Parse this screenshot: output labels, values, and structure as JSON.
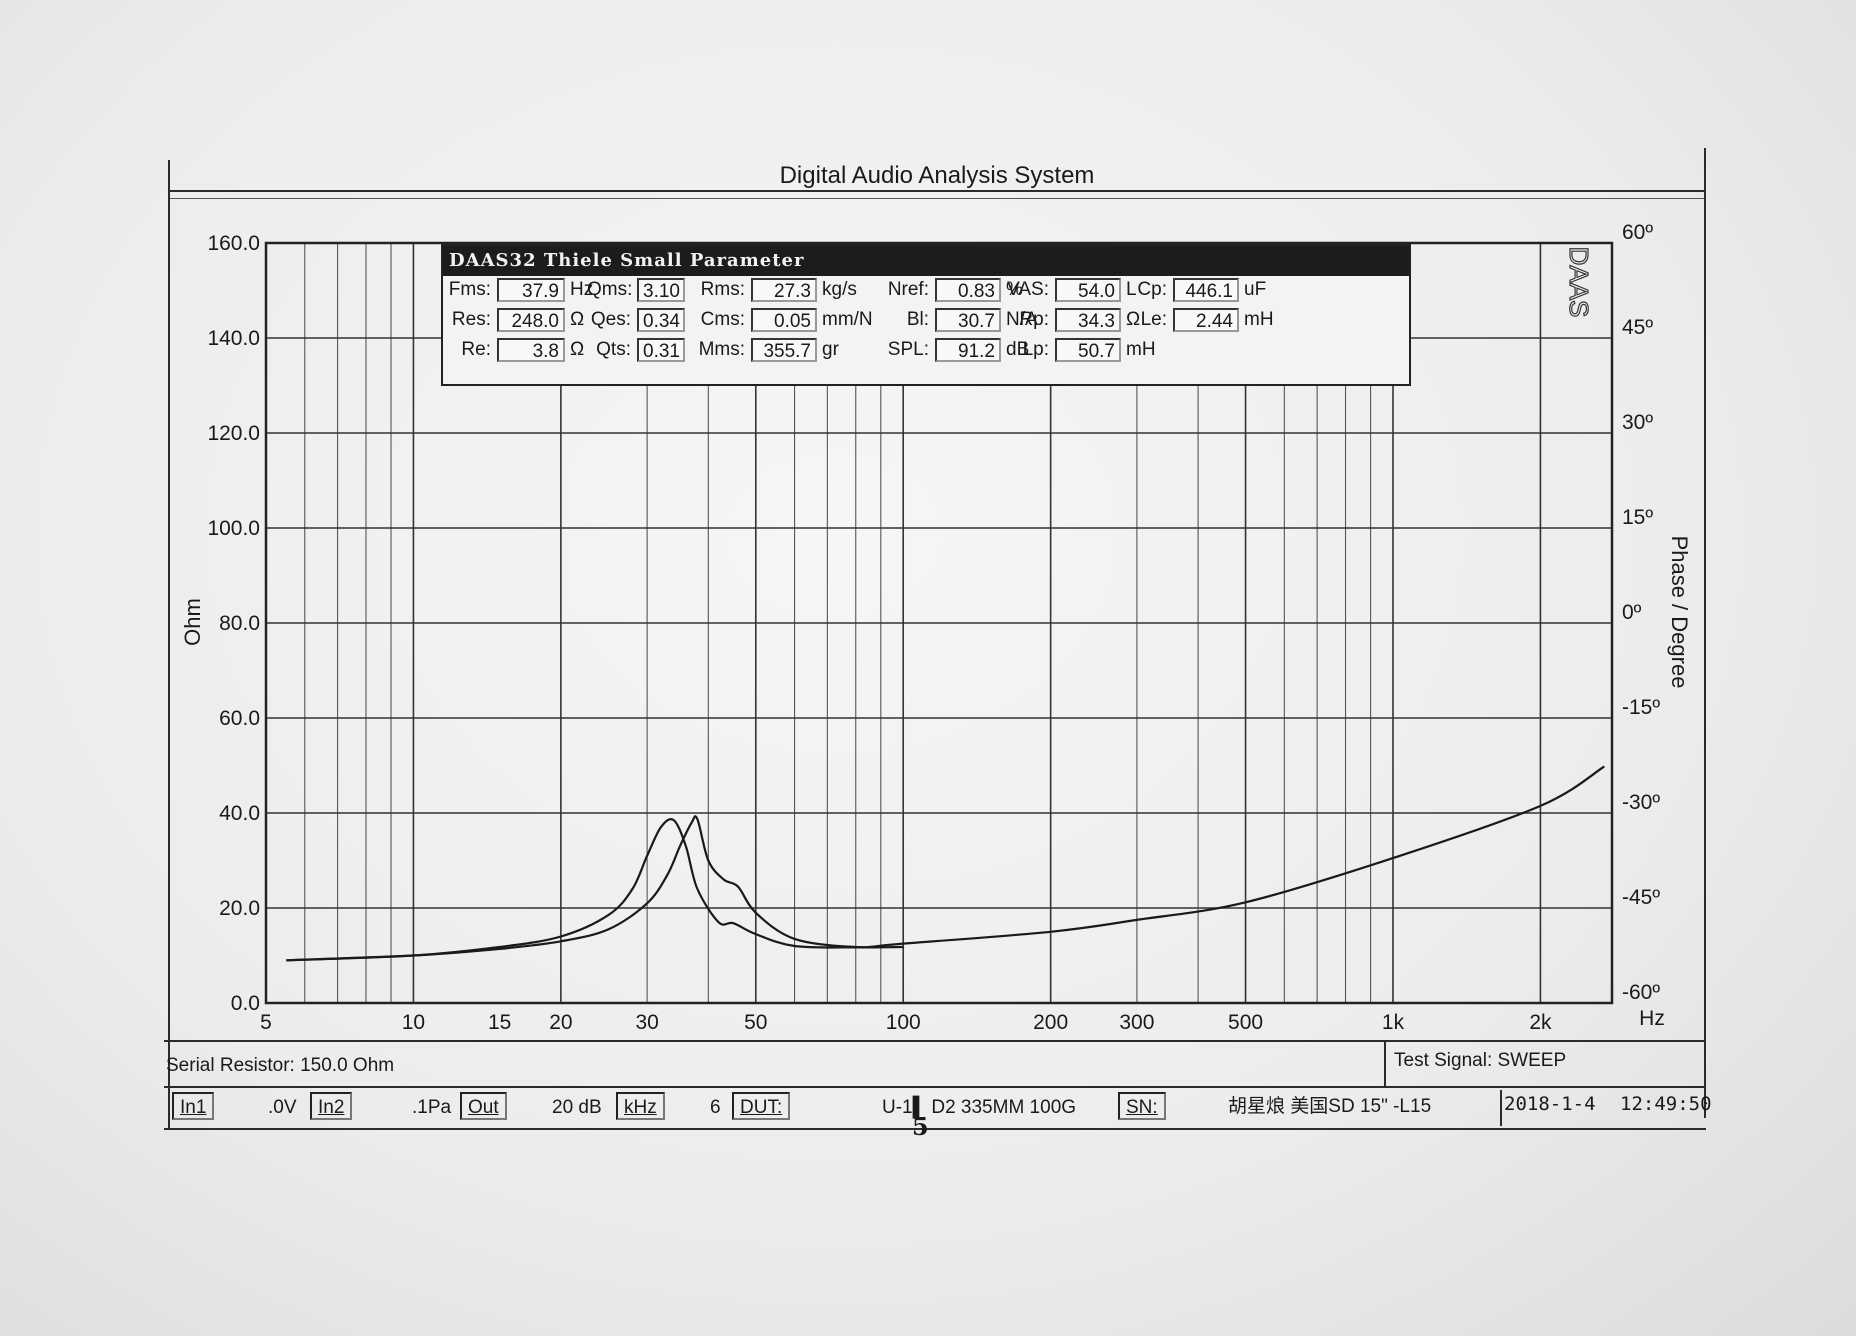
{
  "title": "Digital Audio Analysis System",
  "parameter_panel": {
    "title": "DAAS32 Thiele Small Parameter",
    "vertical_logo": "DAAS",
    "rows": [
      [
        {
          "label": "Fms:",
          "value": "37.9",
          "unit": "Hz"
        },
        {
          "label": "Qms:",
          "value": "3.10",
          "unit": ""
        },
        {
          "label": "Rms:",
          "value": "27.3",
          "unit": "kg/s"
        },
        {
          "label": "Nref:",
          "value": "0.83",
          "unit": "%"
        },
        {
          "label": "VAS:",
          "value": "54.0",
          "unit": "L"
        },
        {
          "label": "Cp:",
          "value": "446.1",
          "unit": "uF"
        }
      ],
      [
        {
          "label": "Res:",
          "value": "248.0",
          "unit": "Ω"
        },
        {
          "label": "Qes:",
          "value": "0.34",
          "unit": ""
        },
        {
          "label": "Cms:",
          "value": "0.05",
          "unit": "mm/N"
        },
        {
          "label": "Bl:",
          "value": "30.7",
          "unit": "N/A"
        },
        {
          "label": "Rp:",
          "value": "34.3",
          "unit": "Ω"
        },
        {
          "label": "Le:",
          "value": "2.44",
          "unit": "mH"
        }
      ],
      [
        {
          "label": "Re:",
          "value": "3.8",
          "unit": "Ω"
        },
        {
          "label": "Qts:",
          "value": "0.31",
          "unit": ""
        },
        {
          "label": "Mms:",
          "value": "355.7",
          "unit": "gr"
        },
        {
          "label": "SPL:",
          "value": "91.2",
          "unit": "dB"
        },
        {
          "label": "Lp:",
          "value": "50.7",
          "unit": "mH"
        }
      ]
    ]
  },
  "chart_data": {
    "type": "line",
    "xlabel": "Hz",
    "ylabel": "Ohm",
    "y2label": "Phase / Degree",
    "x_scale": "log",
    "xlim": [
      5,
      2800
    ],
    "ylim": [
      0,
      160
    ],
    "y2lim": [
      -60,
      60
    ],
    "grid": true,
    "x_tick_labels": [
      {
        "v": 5,
        "t": "5"
      },
      {
        "v": 10,
        "t": "10"
      },
      {
        "v": 15,
        "t": "15"
      },
      {
        "v": 20,
        "t": "20"
      },
      {
        "v": 30,
        "t": "30"
      },
      {
        "v": 50,
        "t": "50"
      },
      {
        "v": 100,
        "t": "100"
      },
      {
        "v": 200,
        "t": "200"
      },
      {
        "v": 300,
        "t": "300"
      },
      {
        "v": 500,
        "t": "500"
      },
      {
        "v": 1000,
        "t": "1k"
      },
      {
        "v": 2000,
        "t": "2k"
      }
    ],
    "y_ticks": [
      "0.0",
      "20.0",
      "40.0",
      "60.0",
      "80.0",
      "100.0",
      "120.0",
      "140.0",
      "160.0"
    ],
    "y2_ticks": [
      "-60º",
      "-45º",
      "-30º",
      "-15º",
      "0º",
      "15º",
      "30º",
      "45º",
      "60º"
    ],
    "series": [
      {
        "x": [
          5.5,
          10,
          15,
          20,
          25,
          28,
          30,
          32,
          34,
          36,
          38,
          42,
          45,
          50,
          60,
          80,
          100
        ],
        "values": [
          9.0,
          10.0,
          11.8,
          14.0,
          18.5,
          24.0,
          31.0,
          37.0,
          38.5,
          33.0,
          24.0,
          17.0,
          16.8,
          14.5,
          12.0,
          11.7,
          11.8
        ]
      },
      {
        "x": [
          5.5,
          10,
          15,
          20,
          25,
          30,
          33,
          35,
          37,
          38,
          40,
          43,
          46,
          50,
          60,
          80,
          100,
          200,
          300,
          500,
          1000,
          2000,
          2700
        ],
        "values": [
          9.0,
          10.0,
          11.4,
          13.0,
          15.5,
          21.0,
          27.0,
          33.0,
          38.0,
          38.7,
          30.0,
          26.0,
          24.5,
          19.0,
          13.5,
          11.8,
          12.5,
          15.0,
          17.5,
          21.2,
          30.5,
          41.5,
          49.8
        ]
      }
    ]
  },
  "status": {
    "serial_resistor": "Serial Resistor: 150.0 Ohm",
    "test_signal": "Test Signal: SWEEP",
    "in1_button": "In1",
    "in1_value": ".0V",
    "in2_button": "In2",
    "in2_value": ".1Pa",
    "out_button": "Out",
    "level": "20 dB",
    "khz_button": "kHz",
    "dut_number": "6",
    "dut_button": "DUT:",
    "dut_description": "U-1▌  D2  335MM  100G",
    "sn_button": "SN:",
    "sn_text": "胡星烺   美国SD   15\" -L15",
    "sn_digit": "5",
    "date": "2018-1-4",
    "time": "12:49:50"
  }
}
